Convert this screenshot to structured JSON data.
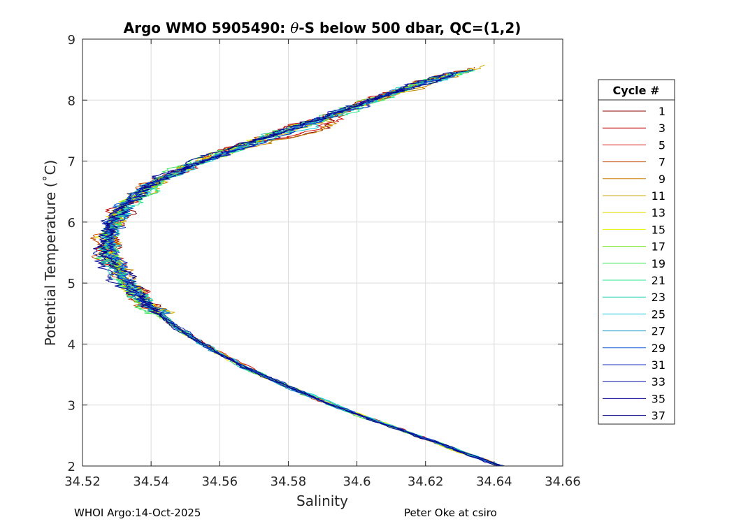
{
  "chart_data": {
    "type": "line",
    "title_parts": {
      "before": "Argo WMO 5905490: ",
      "theta": "θ",
      "after": "-S below 500 dbar,  QC=(1,2)"
    },
    "xlabel": "Salinity",
    "ylabel": "Potential Temperature (˚C)",
    "xlim": [
      34.52,
      34.66
    ],
    "ylim": [
      2,
      9
    ],
    "xticks": [
      "34.52",
      "34.54",
      "34.56",
      "34.58",
      "34.6",
      "34.62",
      "34.64",
      "34.66"
    ],
    "yticks": [
      "2",
      "3",
      "4",
      "5",
      "6",
      "7",
      "8",
      "9"
    ],
    "grid": true,
    "legend": {
      "title": "Cycle #",
      "placement": "outside-right",
      "entries": [
        "1",
        "3",
        "5",
        "7",
        "9",
        "11",
        "13",
        "15",
        "17",
        "19",
        "21",
        "23",
        "25",
        "27",
        "29",
        "31",
        "33",
        "35",
        "37"
      ]
    },
    "series_colors": [
      "#8b0000",
      "#c00000",
      "#d21414",
      "#c8500a",
      "#c88200",
      "#d2aa00",
      "#e6dc00",
      "#e6f000",
      "#78e628",
      "#32e650",
      "#28e68c",
      "#28d2b4",
      "#14c8dc",
      "#1496c8",
      "#1464dc",
      "#1432c8",
      "#0a14aa",
      "#0a0a96",
      "#000082"
    ],
    "profile_mean": [
      [
        34.642,
        2.0
      ],
      [
        34.632,
        2.2
      ],
      [
        34.62,
        2.45
      ],
      [
        34.605,
        2.75
      ],
      [
        34.593,
        3.0
      ],
      [
        34.58,
        3.3
      ],
      [
        34.568,
        3.6
      ],
      [
        34.558,
        3.9
      ],
      [
        34.548,
        4.25
      ],
      [
        34.54,
        4.6
      ],
      [
        34.533,
        5.0
      ],
      [
        34.528,
        5.4
      ],
      [
        34.527,
        5.7
      ],
      [
        34.529,
        6.0
      ],
      [
        34.533,
        6.3
      ],
      [
        34.54,
        6.6
      ],
      [
        34.55,
        6.9
      ],
      [
        34.562,
        7.15
      ],
      [
        34.575,
        7.4
      ],
      [
        34.59,
        7.7
      ],
      [
        34.605,
        8.0
      ],
      [
        34.62,
        8.3
      ],
      [
        34.633,
        8.5
      ],
      [
        34.64,
        8.6
      ]
    ]
  },
  "footer": {
    "left": "WHOI Argo:14-Oct-2025",
    "right": "Peter Oke at csiro"
  }
}
